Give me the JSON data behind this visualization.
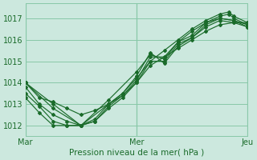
{
  "title": "",
  "xlabel": "Pression niveau de la mer( hPa )",
  "bg_color": "#cce8de",
  "grid_color": "#88c8a8",
  "line_color": "#1a6b2a",
  "x_ticks": [
    0,
    48,
    96
  ],
  "x_tick_labels": [
    "Mar",
    "Mer",
    "Jeu"
  ],
  "ylim": [
    1011.5,
    1017.7
  ],
  "xlim": [
    0,
    96
  ],
  "yticks": [
    1012,
    1013,
    1014,
    1015,
    1016,
    1017
  ],
  "series": [
    {
      "x": [
        0,
        6,
        12,
        18,
        24,
        30,
        36,
        42,
        48,
        54,
        60,
        66,
        72,
        78,
        84,
        90,
        96
      ],
      "y": [
        1014.0,
        1013.3,
        1013.1,
        1012.8,
        1012.5,
        1012.7,
        1013.0,
        1013.4,
        1014.0,
        1014.8,
        1015.2,
        1015.6,
        1016.0,
        1016.4,
        1016.7,
        1016.8,
        1016.8
      ]
    },
    {
      "x": [
        0,
        6,
        12,
        18,
        24,
        30,
        36,
        42,
        48,
        54,
        60,
        66,
        72,
        78,
        84,
        88,
        90,
        96
      ],
      "y": [
        1013.8,
        1013.0,
        1012.5,
        1012.2,
        1012.0,
        1012.3,
        1013.0,
        1013.5,
        1014.2,
        1015.0,
        1015.5,
        1016.0,
        1016.5,
        1016.9,
        1017.2,
        1017.3,
        1017.1,
        1016.8
      ]
    },
    {
      "x": [
        0,
        6,
        12,
        18,
        24,
        30,
        36,
        42,
        48,
        54,
        60,
        66,
        72,
        78,
        84,
        88,
        90,
        96
      ],
      "y": [
        1013.5,
        1012.9,
        1012.2,
        1012.0,
        1012.0,
        1012.2,
        1012.9,
        1013.4,
        1014.1,
        1015.2,
        1015.2,
        1015.9,
        1016.2,
        1016.8,
        1017.1,
        1017.2,
        1017.0,
        1016.7
      ]
    },
    {
      "x": [
        0,
        6,
        12,
        18,
        24,
        30,
        36,
        42,
        48,
        54,
        60,
        66,
        72,
        78,
        84,
        90,
        96
      ],
      "y": [
        1013.3,
        1012.6,
        1012.0,
        1012.0,
        1012.0,
        1012.2,
        1012.8,
        1013.3,
        1014.0,
        1015.0,
        1015.0,
        1015.8,
        1016.1,
        1016.7,
        1017.0,
        1016.9,
        1016.6
      ]
    },
    {
      "x": [
        0,
        12,
        24,
        36,
        48,
        54,
        60,
        66,
        72,
        78,
        84,
        90,
        96
      ],
      "y": [
        1014.0,
        1012.8,
        1012.0,
        1013.2,
        1014.5,
        1015.3,
        1015.1,
        1015.9,
        1016.4,
        1016.8,
        1017.0,
        1016.9,
        1016.7
      ]
    },
    {
      "x": [
        0,
        12,
        24,
        36,
        42,
        48,
        54,
        60,
        66,
        72,
        78,
        84,
        90,
        96
      ],
      "y": [
        1014.0,
        1013.0,
        1012.0,
        1013.0,
        1013.5,
        1014.3,
        1015.4,
        1014.9,
        1015.7,
        1016.1,
        1016.6,
        1016.9,
        1016.8,
        1016.6
      ]
    }
  ]
}
